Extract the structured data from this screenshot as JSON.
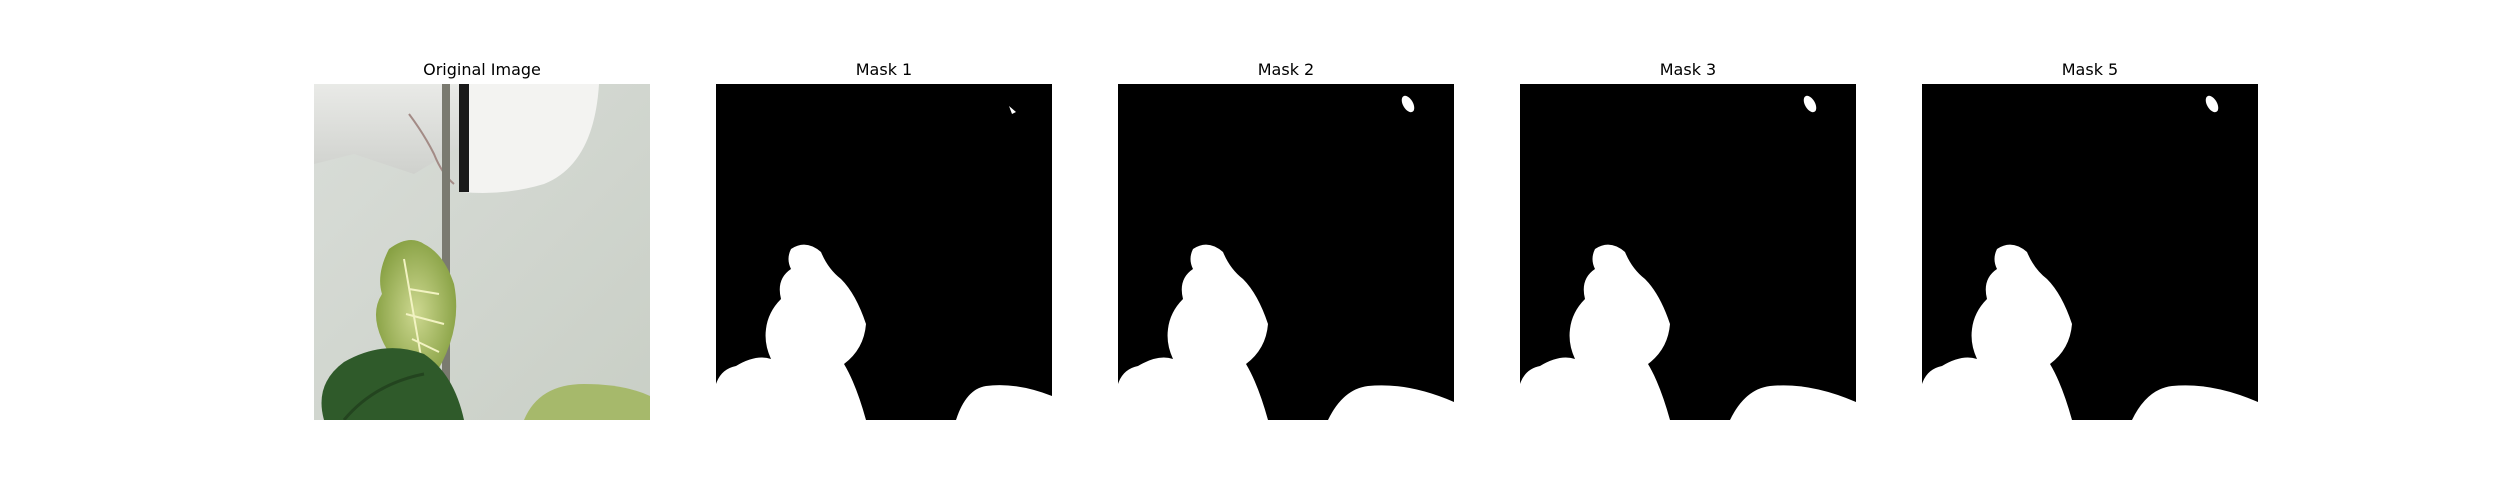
{
  "figure": {
    "panels": [
      {
        "id": "original",
        "title": "Original Image"
      },
      {
        "id": "mask1",
        "title": "Mask 1"
      },
      {
        "id": "mask2",
        "title": "Mask 2"
      },
      {
        "id": "mask3",
        "title": "Mask 3"
      },
      {
        "id": "mask5",
        "title": "Mask 5"
      }
    ]
  },
  "colors": {
    "background": "#ffffff",
    "mask_background": "#000000",
    "mask_foreground": "#ffffff",
    "wall": "#dcdfdb",
    "lampshade": "#f1f1ef",
    "leaf_light": "#a9bb6a",
    "leaf_dark": "#2f5a2a"
  }
}
